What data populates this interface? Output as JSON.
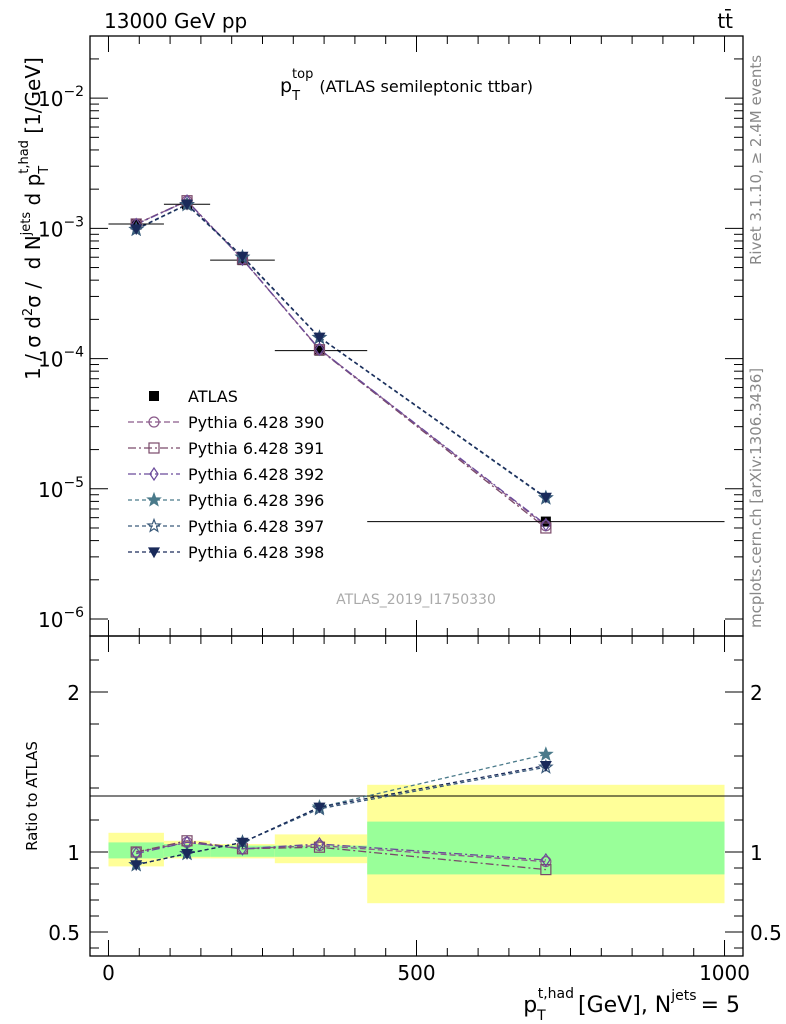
{
  "header": {
    "left": "13000 GeV pp",
    "right": "tt̄"
  },
  "side_text": {
    "rivet": "Rivet 3.1.10, ≥ 2.4M events",
    "mcplots": "mcplots.cern.ch [arXiv:1306.3436]"
  },
  "watermark": "ATLAS_2019_I1750330",
  "colors": {
    "band_inner": "#99ff99",
    "band_outer": "#ffff99",
    "data": "#000000"
  },
  "chart_data": [
    {
      "type": "line",
      "title": "p_T^top (ATLAS semileptonic ttbar)",
      "title_main": "p",
      "title_sub": "T",
      "title_sup": "top",
      "title_rest": "(ATLAS semileptonic ttbar)",
      "ylabel": "1 / σ d²σ / d N^jets d p_T^t,had [1/GeV]",
      "yscale": "log",
      "ylim": [
        1e-06,
        0.03
      ],
      "xlim": [
        -30,
        1030
      ],
      "yticks": [
        {
          "value": 1e-06,
          "label": "10",
          "exp": "−6"
        },
        {
          "value": 1e-05,
          "label": "10",
          "exp": "−5"
        },
        {
          "value": 0.0001,
          "label": "10",
          "exp": "−4"
        },
        {
          "value": 0.001,
          "label": "10",
          "exp": "−3"
        },
        {
          "value": 0.01,
          "label": "10",
          "exp": "−2"
        }
      ],
      "data": {
        "name": "ATLAS",
        "x": [
          45,
          127.5,
          217.5,
          342.5,
          710
        ],
        "xerr": [
          [
            0,
            90
          ],
          [
            90,
            165
          ],
          [
            165,
            270
          ],
          [
            270,
            420
          ],
          [
            420,
            1000
          ]
        ],
        "y": [
          0.00108,
          0.00153,
          0.00057,
          0.000115,
          5.6e-06
        ]
      },
      "series": [
        {
          "name": "Pythia 6.428 390",
          "color": "#8a5a8a",
          "marker": "circle",
          "dash": "6,3",
          "y": [
            0.00108,
            0.00162,
            0.00058,
            0.000118,
            5.2e-06
          ]
        },
        {
          "name": "Pythia 6.428 391",
          "color": "#7a4a6a",
          "marker": "square",
          "dash": "8,3,2,3",
          "y": [
            0.00108,
            0.00163,
            0.00058,
            0.000117,
            5e-06
          ]
        },
        {
          "name": "Pythia 6.428 392",
          "color": "#6a4a9a",
          "marker": "diamond",
          "dash": "8,3,2,3",
          "y": [
            0.00107,
            0.00162,
            0.00058,
            0.000118,
            5.3e-06
          ]
        },
        {
          "name": "Pythia 6.428 396",
          "color": "#4a7a8a",
          "marker": "star-filled",
          "dash": "4,3",
          "y": [
            0.00098,
            0.00152,
            0.0006,
            0.000145,
            8.5e-06
          ]
        },
        {
          "name": "Pythia 6.428 397",
          "color": "#3a5a7a",
          "marker": "star-open",
          "dash": "4,3",
          "y": [
            0.00098,
            0.00152,
            0.0006,
            0.000145,
            8.5e-06
          ]
        },
        {
          "name": "Pythia 6.428 398",
          "color": "#1a2a5a",
          "marker": "triangle-down",
          "dash": "4,3",
          "y": [
            0.00099,
            0.00153,
            0.00061,
            0.000146,
            8.6e-06
          ]
        }
      ]
    },
    {
      "type": "line",
      "ylabel": "Ratio to ATLAS",
      "xlabel_main": "p",
      "xlabel_sub": "T",
      "xlabel_sup": "t,had",
      "xlabel_mid": "[GeV], N",
      "xlabel_sup2": "jets",
      "xlabel_end": "= 5",
      "ylim": [
        0.35,
        2.35
      ],
      "xticks": [
        {
          "value": 0,
          "label": "0"
        },
        {
          "value": 500,
          "label": "500"
        },
        {
          "value": 1000,
          "label": "1000"
        }
      ],
      "yticks": [
        {
          "value": 0.5,
          "label": "0.5"
        },
        {
          "value": 1,
          "label": "1"
        },
        {
          "value": 2,
          "label": "2"
        }
      ],
      "bands": [
        {
          "x": [
            0,
            90
          ],
          "inner": [
            0.96,
            1.06
          ],
          "outer": [
            0.91,
            1.12
          ]
        },
        {
          "x": [
            90,
            165
          ],
          "inner": [
            0.97,
            1.05
          ],
          "outer": [
            0.96,
            1.07
          ]
        },
        {
          "x": [
            165,
            270
          ],
          "inner": [
            0.97,
            1.04
          ],
          "outer": [
            0.96,
            1.05
          ]
        },
        {
          "x": [
            270,
            420
          ],
          "inner": [
            0.97,
            1.04
          ],
          "outer": [
            0.93,
            1.11
          ]
        },
        {
          "x": [
            420,
            1000
          ],
          "inner": [
            0.86,
            1.19
          ],
          "outer": [
            0.68,
            1.42
          ]
        }
      ],
      "series": [
        {
          "name": "Pythia 6.428 390",
          "y": [
            1.0,
            1.06,
            1.02,
            1.04,
            0.94
          ]
        },
        {
          "name": "Pythia 6.428 391",
          "y": [
            1.0,
            1.07,
            1.02,
            1.03,
            0.89
          ]
        },
        {
          "name": "Pythia 6.428 392",
          "y": [
            0.99,
            1.06,
            1.02,
            1.05,
            0.95
          ]
        },
        {
          "name": "Pythia 6.428 396",
          "y": [
            0.92,
            0.99,
            1.06,
            1.28,
            1.61
          ]
        },
        {
          "name": "Pythia 6.428 397",
          "y": [
            0.92,
            0.99,
            1.06,
            1.27,
            1.53
          ]
        },
        {
          "name": "Pythia 6.428 398",
          "y": [
            0.92,
            0.99,
            1.06,
            1.28,
            1.54
          ]
        }
      ]
    }
  ]
}
